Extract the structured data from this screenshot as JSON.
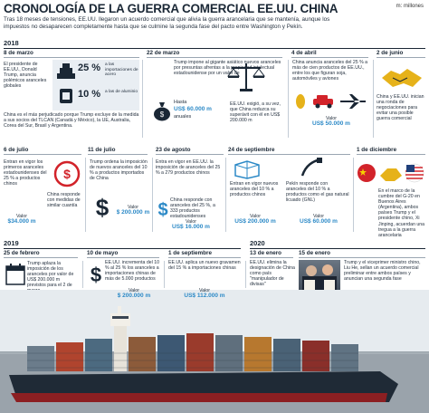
{
  "header": {
    "title": "CRONOLOGÍA DE LA GUERRA COMERCIAL EE.UU. CHINA",
    "unit": "m: millones",
    "subtitle": "Tras 18 meses de tensiones, EE.UU. llegaron un acuerdo comercial que alivia la guerra arancelaria que se mantenía, aunque los impuestos no desaparecen completamente hasta que se culmine la segunda fase del pacto entre Washington y Pekín."
  },
  "years": {
    "y2018": "2018",
    "y2019": "2019",
    "y2020": "2020"
  },
  "events": {
    "e1": {
      "date": "8 de marzo",
      "text": "El presidente de EE.UU., Donald Trump, anuncia polémicos aranceles globales",
      "pct1": "25 %",
      "pct1_label": "a las importaciones de acero",
      "pct2": "10 %",
      "pct2_label": "a las de aluminio",
      "text2": "China es el más perjudicado porque Trump excluye de la medida a sus socios del TLCAN (Canadá y México), la UE, Australia, Corea del Sur, Brasil y Argentina."
    },
    "e2": {
      "date": "22 de marzo",
      "text": "Trump impone al gigante asiático nuevos aranceles por presuntas afrentas a la propiedad intelectual estadounidense por un valor de",
      "value_prefix": "Hasta",
      "value": "US$ 60.000 m",
      "value_suffix": "anuales"
    },
    "e3": {
      "date": "4 de abril",
      "text": "China anuncia aranceles del 25 % a más de cien productos de EE.UU., entre los que figuran soja, automóviles y aviones",
      "value_label": "Valor",
      "value": "US$ 50.000 m",
      "text_right": "EE.UU. exigió, a su vez, que China reduzca su superávit con él en US$ 200.000 m"
    },
    "e4": {
      "date": "2 de junio",
      "text": "China y EE.UU. inician una ronda de negociaciones para evitar una posible guerra comercial"
    },
    "e5": {
      "date": "6 de julio",
      "text": "Entran en vigor los primeros aranceles estadounidenses del 25 % a productos chinos",
      "text2": "China responde con medidas de similar cuantía",
      "value_label": "Valor",
      "value": "$34.000 m"
    },
    "e6": {
      "date": "11 de julio",
      "text": "Trump ordena la imposición de nuevos aranceles del 10 % a productos importados de China",
      "value_label": "Valor",
      "value": "$ 200.000 m"
    },
    "e7": {
      "date": "23 de agosto",
      "text": "Entra en vigor en EE.UU. la imposición de aranceles del 25 % a 279 productos chinos",
      "value_label": "Valor",
      "value": "US$ 16.000 m",
      "text2": "China responde con aranceles del 25 %, a 333 productos estadounidenses"
    },
    "e8": {
      "date": "24 de septiembre",
      "text": "Entran en vigor nuevos aranceles del 10 % a productos chinos",
      "value_label": "Valor",
      "value": "US$ 200.000 m",
      "text2": "Pekín responde con aranceles del 10 % a productos como el gas natural licuado (GNL)",
      "value2_label": "Valor",
      "value2": "US$ 60.000 m"
    },
    "e9": {
      "date": "1 de diciembre",
      "text": "En el marco de la cumbre del G-20 en Buenos Aires (Argentina), ambos países Trump y el presidente chino, Xi Jinping, acuerdan una tregua a la guerra arancelaria"
    },
    "e10": {
      "date": "25 de febrero",
      "text": "Trump aplaza la imposición de los aranceles por valor de US$ 200.000 m previstos para el 2 de marzo"
    },
    "e11": {
      "date": "10 de mayo",
      "text": "EE.UU. incrementa del 10 % al 25 % los aranceles a importaciones chinas de más de 5.000 productos",
      "value_label": "Valor",
      "value": "$ 200.000 m"
    },
    "e12": {
      "date": "1 de septiembre",
      "text": "EE.UU. aplica un nuevo gravamen del 15 % a importaciones chinas",
      "value_label": "Valor",
      "value": "US$ 112.000 m"
    },
    "e13": {
      "date": "13 de enero",
      "text": "EE.UU. elimina la designación de China como país \"manipulador de divisas\""
    },
    "e14": {
      "date": "15 de enero",
      "text": "Trump y el viceprimer ministro chino, Liu He, sellan un acuerdo comercial preliminar entre ambos países y anuncian una segunda fase"
    }
  },
  "colors": {
    "accent": "#2d8ac7",
    "dark": "#1a2735",
    "red": "#d2232a"
  },
  "icons": [
    "steel-bars-icon",
    "aluminum-icon",
    "money-bag-icon",
    "scales-icon",
    "soy-car-plane-icon",
    "handshake-icon",
    "money-exchange-icon",
    "dollar-icon",
    "container-icon",
    "gas-pump-icon",
    "flags-icon",
    "currency-icon"
  ]
}
